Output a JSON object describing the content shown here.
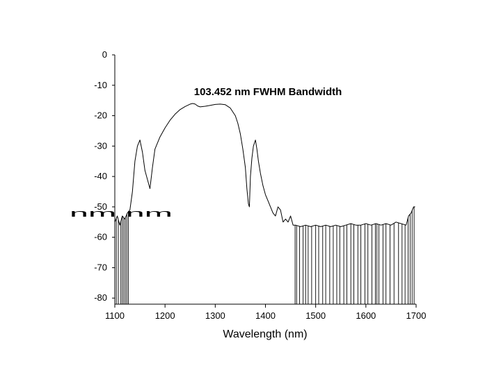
{
  "chart_data": {
    "type": "line",
    "title": "",
    "xlabel": "Wavelength (nm)",
    "ylabel": "",
    "xlim": [
      1100,
      1700
    ],
    "ylim": [
      -82,
      0
    ],
    "xticks": [
      1100,
      1200,
      1300,
      1400,
      1500,
      1600,
      1700
    ],
    "yticks": [
      0,
      -10,
      -20,
      -30,
      -40,
      -50,
      -60,
      -70,
      -80
    ],
    "grid": false,
    "legend": "none",
    "annotation": "103.452 nm FWHM Bandwidth",
    "overlay_text": "nm nm",
    "series": [
      {
        "color": "#000000",
        "x": [
          1100,
          1105,
          1110,
          1115,
          1120,
          1125,
          1130,
          1135,
          1140,
          1145,
          1150,
          1155,
          1160,
          1165,
          1170,
          1175,
          1180,
          1190,
          1200,
          1210,
          1220,
          1230,
          1240,
          1250,
          1255,
          1260,
          1265,
          1270,
          1280,
          1290,
          1300,
          1310,
          1320,
          1330,
          1340,
          1345,
          1350,
          1355,
          1360,
          1363,
          1366,
          1368,
          1370,
          1373,
          1376,
          1380,
          1383,
          1386,
          1390,
          1395,
          1400,
          1405,
          1410,
          1415,
          1420,
          1425,
          1430,
          1435,
          1440,
          1445,
          1450,
          1455,
          1460,
          1470,
          1480,
          1490,
          1500,
          1510,
          1520,
          1530,
          1540,
          1550,
          1560,
          1570,
          1580,
          1590,
          1600,
          1610,
          1620,
          1630,
          1640,
          1650,
          1660,
          1670,
          1680,
          1685,
          1690,
          1695,
          1698
        ],
        "y": [
          -55,
          -53,
          -56,
          -53,
          -54,
          -52,
          -51,
          -45,
          -35,
          -30,
          -28,
          -32,
          -38,
          -41,
          -44,
          -37,
          -31,
          -27,
          -24,
          -21.5,
          -19.5,
          -18,
          -17,
          -16.2,
          -16,
          -16.2,
          -16.8,
          -17.1,
          -16.9,
          -16.6,
          -16.3,
          -16.2,
          -16.4,
          -17.5,
          -20,
          -22.5,
          -26,
          -31,
          -37,
          -44,
          -49,
          -50,
          -40,
          -34,
          -30,
          -28,
          -31,
          -35,
          -39,
          -43,
          -46,
          -48,
          -50,
          -52,
          -53,
          -50,
          -51,
          -55,
          -54,
          -55,
          -53,
          -56,
          -56,
          -56.5,
          -56,
          -56.5,
          -56,
          -56.5,
          -56,
          -56.5,
          -56,
          -56.5,
          -56,
          -55.5,
          -56,
          -56,
          -55.5,
          -56,
          -55.5,
          -56,
          -55.5,
          -56,
          -55,
          -55.5,
          -56,
          -53,
          -52,
          -50,
          -50
        ]
      }
    ],
    "noise_drop_x": [
      1103,
      1107,
      1112,
      1115,
      1118,
      1121,
      1124,
      1127,
      1459,
      1462,
      1468,
      1475,
      1480,
      1485,
      1492,
      1500,
      1506,
      1514,
      1520,
      1528,
      1535,
      1542,
      1548,
      1556,
      1562,
      1570,
      1576,
      1584,
      1590,
      1598,
      1604,
      1612,
      1619,
      1622,
      1626,
      1634,
      1640,
      1648,
      1656,
      1665,
      1672,
      1678,
      1684,
      1688,
      1692,
      1696
    ]
  }
}
